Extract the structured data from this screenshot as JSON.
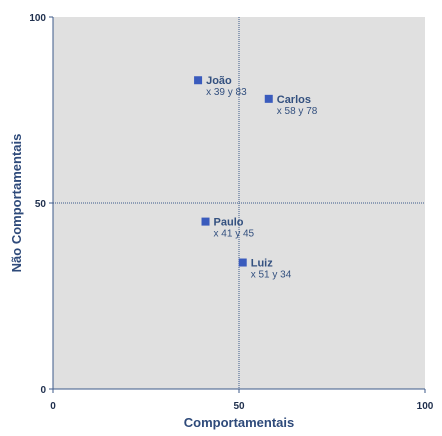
{
  "chart_data": {
    "type": "scatter",
    "xlabel": "Comportamentais",
    "ylabel": "Não Comportamentais",
    "xlim": [
      0,
      100
    ],
    "ylim": [
      0,
      100
    ],
    "xticks": [
      "0",
      "50",
      "100"
    ],
    "yticks": [
      "0",
      "50",
      "100"
    ],
    "reference_lines": {
      "x": 50,
      "y": 50
    },
    "grid": false,
    "points": [
      {
        "name": "João",
        "x": 39,
        "y": 83,
        "label": "x 39  y 83"
      },
      {
        "name": "Carlos",
        "x": 58,
        "y": 78,
        "label": "x 58  y 78"
      },
      {
        "name": "Paulo",
        "x": 41,
        "y": 45,
        "label": "x 41  y 45"
      },
      {
        "name": "Luiz",
        "x": 51,
        "y": 34,
        "label": "x 51  y 34"
      }
    ],
    "colors": {
      "plot_background": "#e0e0e0",
      "marker": "#3a5bbd",
      "axis": "#3d5a8a",
      "reference_line": "#3d5a8a",
      "text": "#33507f"
    }
  }
}
